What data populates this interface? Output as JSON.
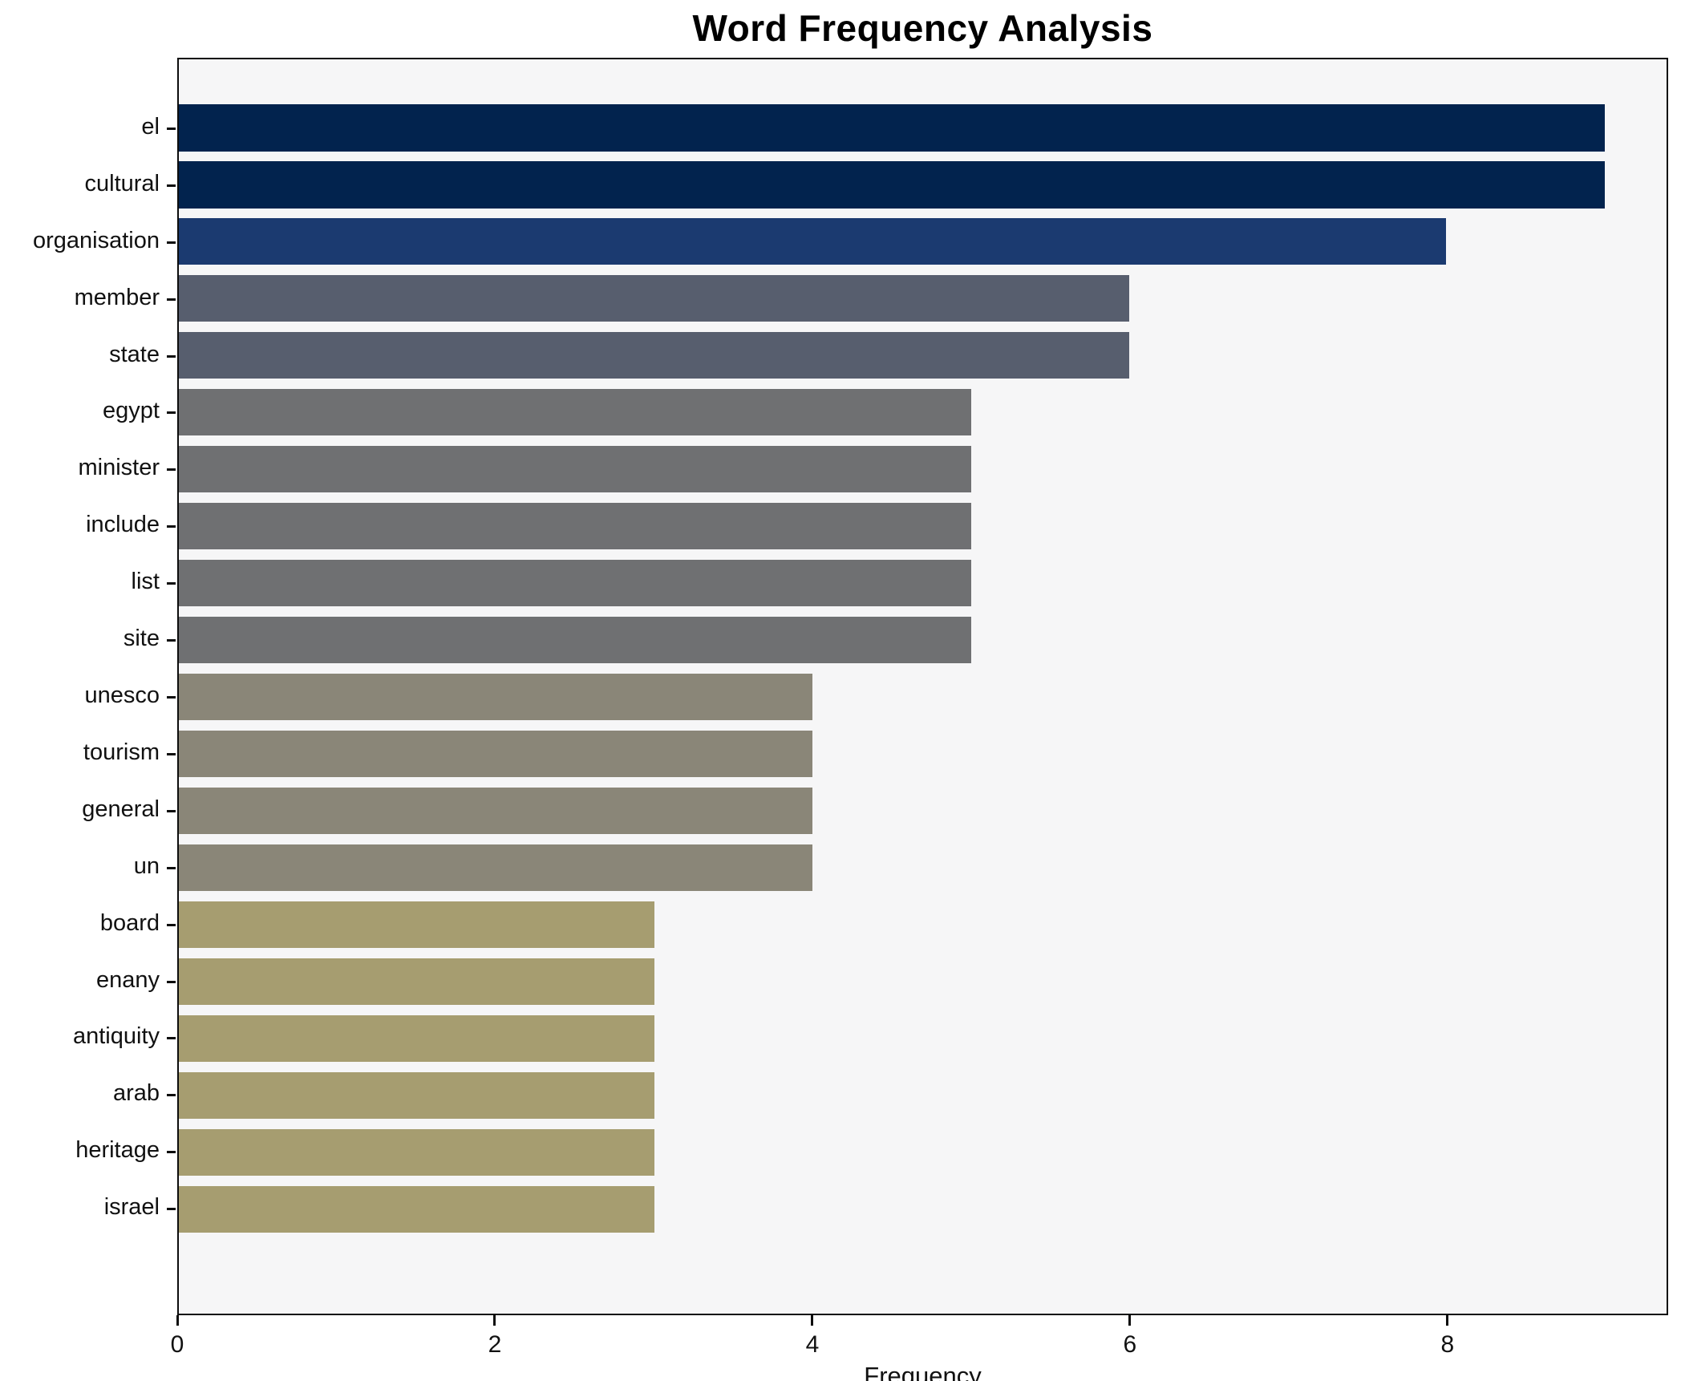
{
  "title": "Word Frequency Analysis",
  "xlabel": "Frequency",
  "chart_data": {
    "type": "bar",
    "orientation": "horizontal",
    "title": "Word Frequency Analysis",
    "xlabel": "Frequency",
    "ylabel": "",
    "grid": false,
    "legend": null,
    "plot_background": "#f6f6f7",
    "spine_color": "#0d0d0d",
    "xlim": [
      0,
      9.39
    ],
    "xticks": [
      0,
      2,
      4,
      6,
      8
    ],
    "categories": [
      "el",
      "cultural",
      "organisation",
      "member",
      "state",
      "egypt",
      "minister",
      "include",
      "list",
      "site",
      "unesco",
      "tourism",
      "general",
      "un",
      "board",
      "enany",
      "antiquity",
      "arab",
      "heritage",
      "israel"
    ],
    "values": [
      9,
      9,
      8,
      6,
      6,
      5,
      5,
      5,
      5,
      5,
      4,
      4,
      4,
      4,
      3,
      3,
      3,
      3,
      3,
      3
    ],
    "bar_colors": [
      "#02234e",
      "#02234e",
      "#1b3a70",
      "#575e6e",
      "#575e6e",
      "#6f7072",
      "#6f7072",
      "#6f7072",
      "#6f7072",
      "#6f7072",
      "#8a8678",
      "#8a8678",
      "#8a8678",
      "#8a8678",
      "#a69d70",
      "#a69d70",
      "#a69d70",
      "#a69d70",
      "#a69d70",
      "#a69d70"
    ]
  }
}
